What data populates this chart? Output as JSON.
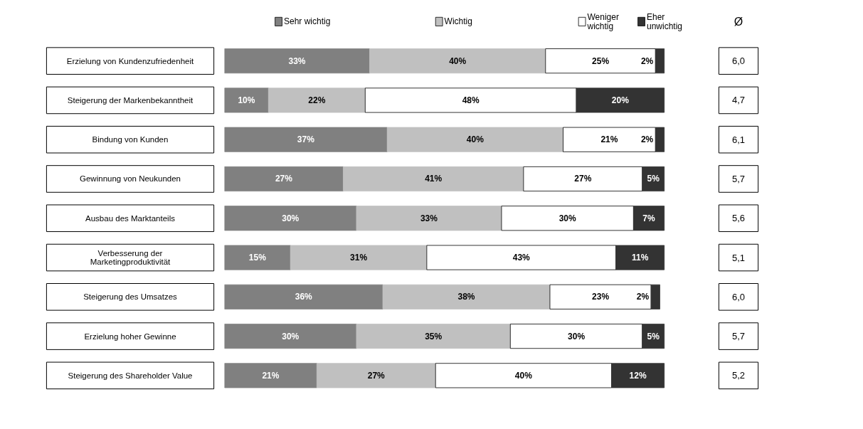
{
  "chart_data": [
    {
      "type": "bar",
      "orientation": "horizontal",
      "stacked": true,
      "legend": "top",
      "categories": [
        "Erzielung von Kundenzufriedenheit",
        "Steigerung der Markenbekanntheit",
        "Bindung von Kunden",
        "Gewinnung von Neukunden",
        "Ausbau des Marktanteils",
        "Verbesserung der Marketingproduktivität",
        "Steigerung des Umsatzes",
        "Erzielung hoher Gewinne",
        "Steigerung des Shareholder Value"
      ],
      "series": [
        {
          "name": "Sehr wichtig",
          "color": "#808080",
          "values": [
            33,
            10,
            37,
            27,
            30,
            15,
            36,
            30,
            21
          ],
          "value_labels": [
            "33%",
            "10%",
            "37%",
            "27%",
            "30%",
            "15%",
            "36%",
            "30%",
            "21%"
          ]
        },
        {
          "name": "Wichtig",
          "color": "#c0c0c0",
          "values": [
            40,
            22,
            40,
            41,
            33,
            31,
            38,
            35,
            27
          ],
          "value_labels": [
            "40%",
            "22%",
            "40%",
            "41%",
            "33%",
            "31%",
            "38%",
            "35%",
            "27%"
          ]
        },
        {
          "name": "Weniger wichtig",
          "color": "#ffffff",
          "values": [
            25,
            48,
            21,
            27,
            30,
            43,
            23,
            30,
            40
          ],
          "value_labels": [
            "25%",
            "48%",
            "21%",
            "27%",
            "30%",
            "43%",
            "23%",
            "30%",
            "40%"
          ]
        },
        {
          "name": "Eher unwichtig",
          "color": "#333333",
          "values": [
            2,
            20,
            2,
            5,
            7,
            11,
            2,
            5,
            12
          ],
          "value_labels": [
            "2%",
            "20%",
            "2%",
            "5%",
            "7%",
            "11%",
            "2%",
            "5%",
            "12%"
          ]
        }
      ]
    },
    {
      "type": "other",
      "title": "Ø",
      "value_labels": [
        "6,0",
        "4,7",
        "6,1",
        "5,7",
        "5,6",
        "5,1",
        "6,0",
        "5,7",
        "5,2"
      ]
    }
  ]
}
